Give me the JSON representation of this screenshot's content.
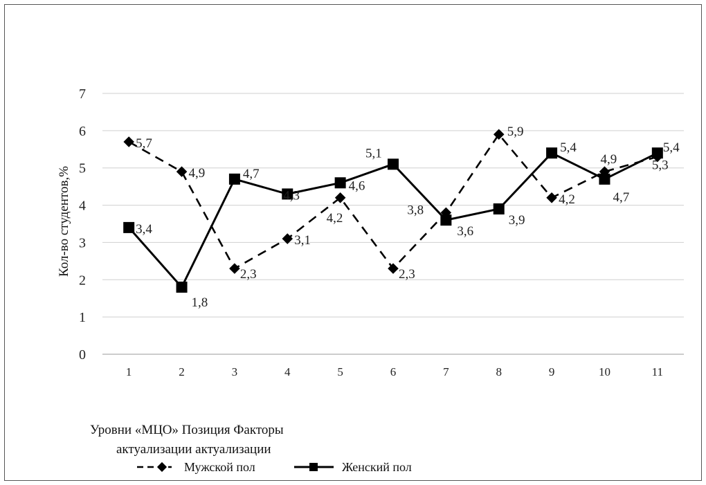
{
  "chart_data": {
    "type": "line",
    "title": "",
    "xlabel_lines": [
      "Уровни «МЦО» Позиция Факторы",
      "актуализации актуализации"
    ],
    "ylabel": "Кол-во студентов,%",
    "x": [
      "1",
      "2",
      "3",
      "4",
      "5",
      "6",
      "7",
      "8",
      "9",
      "10",
      "11"
    ],
    "yticks": [
      "0",
      "1",
      "2",
      "3",
      "4",
      "5",
      "6",
      "7"
    ],
    "ylim": [
      0,
      7
    ],
    "grid": true,
    "legend_position": "bottom",
    "series": [
      {
        "name": "Мужской пол",
        "style": "dashed",
        "marker": "diamond",
        "color": "#000000",
        "values": [
          5.7,
          4.9,
          2.3,
          3.1,
          4.2,
          2.3,
          3.8,
          5.9,
          4.2,
          4.9,
          5.3
        ],
        "labels": [
          "5,7",
          "4,9",
          "2,3",
          "3,1",
          "4,2",
          "2,3",
          "3,8",
          "5,9",
          "4,2",
          "4,9",
          "5,3"
        ]
      },
      {
        "name": "Женский пол",
        "style": "solid",
        "marker": "square",
        "color": "#000000",
        "values": [
          3.4,
          1.8,
          4.7,
          4.3,
          4.6,
          5.1,
          3.6,
          3.9,
          5.4,
          4.7,
          5.4
        ],
        "labels": [
          "3,4",
          "1,8",
          "4,7",
          "4,3",
          "4,6",
          "5,1",
          "3,6",
          "3,9",
          "5,4",
          "4,7",
          "5,4"
        ]
      }
    ]
  }
}
